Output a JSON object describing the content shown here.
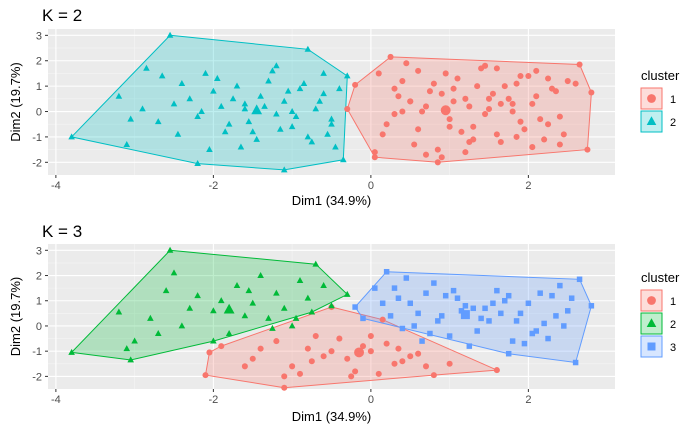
{
  "colors": {
    "panel_bg": "#ebebeb",
    "grid_major": "#ffffff",
    "k2": [
      "#f8766d",
      "#00bfc4"
    ],
    "k3": [
      "#f8766d",
      "#00ba38",
      "#619cff"
    ]
  },
  "chart_data": [
    {
      "type": "scatter",
      "title": "K = 2",
      "xlabel": "Dim1 (34.9%)",
      "ylabel": "Dim2 (19.7%)",
      "xlim": [
        -4.1,
        3.1
      ],
      "ylim": [
        -2.5,
        3.25
      ],
      "xticks": [
        -4,
        -2,
        0,
        2
      ],
      "yticks": [
        -2,
        -1,
        0,
        1,
        2,
        3
      ],
      "grid": true,
      "legend": {
        "title": "cluster",
        "placement": "right"
      },
      "series": [
        {
          "name": "1",
          "marker": "circle",
          "centroid": [
            0.95,
            0.05
          ],
          "hull": [
            [
              0.25,
              2.15
            ],
            [
              2.65,
              1.85
            ],
            [
              2.8,
              0.75
            ],
            [
              2.75,
              -1.5
            ],
            [
              0.85,
              -2.0
            ],
            [
              0.05,
              -1.8
            ],
            [
              -0.3,
              0.1
            ],
            [
              -0.2,
              1.05
            ]
          ],
          "x": [
            0.25,
            2.65,
            2.8,
            2.75,
            0.85,
            0.05,
            -0.3,
            -0.2,
            0.1,
            0.3,
            0.4,
            0.5,
            0.6,
            0.7,
            0.8,
            0.9,
            1.0,
            1.1,
            1.2,
            1.3,
            1.4,
            1.5,
            1.6,
            1.7,
            1.8,
            1.9,
            2.0,
            2.1,
            2.2,
            2.3,
            2.4,
            2.5,
            0.2,
            0.35,
            0.55,
            0.65,
            0.75,
            0.95,
            1.05,
            1.15,
            1.25,
            1.35,
            1.45,
            1.55,
            1.65,
            1.75,
            1.85,
            1.95,
            2.05,
            2.15,
            2.25,
            2.35,
            2.45,
            0.15,
            0.45,
            0.85,
            1.05,
            1.25,
            1.45,
            1.65,
            1.85,
            2.05,
            2.25,
            0.3,
            0.6,
            0.9,
            1.2,
            1.5,
            1.8,
            2.1,
            2.4,
            0.5,
            1.0,
            1.6,
            2.6,
            0.05,
            0.4,
            1.3,
            0.7,
            1.9
          ],
          "y": [
            2.15,
            1.85,
            0.75,
            -1.5,
            -2.0,
            -1.8,
            0.1,
            1.05,
            1.5,
            0.9,
            1.2,
            0.4,
            1.6,
            0.2,
            1.1,
            0.7,
            -0.3,
            1.3,
            0.5,
            -0.6,
            1.7,
            0.1,
            -0.9,
            1.0,
            0.3,
            -0.4,
            1.4,
            0.6,
            -1.1,
            0.9,
            -0.2,
            1.2,
            -0.5,
            0.6,
            -1.3,
            0.0,
            0.8,
            1.5,
            0.4,
            -0.8,
            0.2,
            1.0,
            -0.1,
            0.7,
            -1.2,
            0.5,
            1.1,
            -0.7,
            0.3,
            -0.3,
            1.3,
            0.8,
            -0.9,
            -0.9,
            1.9,
            -1.5,
            0.9,
            -1.2,
            1.8,
            0.3,
            -1.0,
            -1.4,
            -0.5,
            -0.1,
            -0.7,
            -1.8,
            -1.6,
            0.5,
            0.0,
            1.6,
            -1.3,
            0.4,
            -0.6,
            1.7,
            1.1,
            -1.6,
            0.0,
            -1.1,
            -1.7,
            1.4
          ]
        },
        {
          "name": "2",
          "marker": "triangle",
          "centroid": [
            -1.45,
            0.05
          ],
          "hull": [
            [
              -2.55,
              3.0
            ],
            [
              -0.8,
              2.45
            ],
            [
              -0.3,
              1.4
            ],
            [
              -0.35,
              -1.9
            ],
            [
              -1.1,
              -2.3
            ],
            [
              -2.2,
              -2.05
            ],
            [
              -3.8,
              -1.0
            ]
          ],
          "x": [
            -2.55,
            -0.8,
            -0.3,
            -0.35,
            -1.1,
            -2.2,
            -3.8,
            -3.2,
            -3.1,
            -2.9,
            -2.7,
            -2.4,
            -2.3,
            -2.2,
            -2.1,
            -2.0,
            -1.9,
            -1.8,
            -1.7,
            -1.6,
            -1.5,
            -1.4,
            -1.3,
            -1.2,
            -1.1,
            -1.0,
            -0.9,
            -0.8,
            -0.7,
            -0.6,
            -0.5,
            -0.45,
            -2.65,
            -2.45,
            -2.15,
            -1.95,
            -1.75,
            -1.55,
            -1.35,
            -1.25,
            -1.15,
            -1.05,
            -0.95,
            -0.85,
            -0.75,
            -0.65,
            -0.55,
            -0.4,
            -3.05,
            -2.85,
            -1.65,
            -1.45,
            -2.05,
            -1.85,
            -1.2,
            -0.6,
            -0.5,
            -1.6,
            -1.0,
            -2.5
          ],
          "y": [
            3.0,
            2.45,
            1.4,
            -1.9,
            -2.3,
            -2.05,
            -1.0,
            0.6,
            -1.3,
            0.1,
            -0.4,
            1.1,
            0.5,
            -0.2,
            1.5,
            0.8,
            0.2,
            -0.5,
            1.0,
            0.3,
            -0.8,
            0.6,
            1.2,
            -0.1,
            0.4,
            -0.6,
            0.9,
            -1.0,
            0.1,
            0.7,
            -0.3,
            -1.4,
            1.4,
            -0.9,
            0.0,
            1.3,
            0.5,
            -0.4,
            0.2,
            1.6,
            -0.7,
            0.8,
            -0.2,
            1.1,
            -1.2,
            0.4,
            -0.9,
            0.9,
            -0.3,
            1.7,
            -1.4,
            -1.1,
            -1.5,
            -0.8,
            1.8,
            1.5,
            -0.5,
            0.1,
            0.0,
            0.3
          ]
        }
      ]
    },
    {
      "type": "scatter",
      "title": "K = 3",
      "xlabel": "Dim1 (34.9%)",
      "ylabel": "Dim2 (19.7%)",
      "xlim": [
        -4.1,
        3.1
      ],
      "ylim": [
        -2.5,
        3.25
      ],
      "xticks": [
        -4,
        -2,
        0,
        2
      ],
      "yticks": [
        -2,
        -1,
        0,
        1,
        2,
        3
      ],
      "grid": true,
      "legend": {
        "title": "cluster",
        "placement": "right"
      },
      "series": [
        {
          "name": "1",
          "marker": "circle",
          "centroid": [
            -0.15,
            -1.05
          ],
          "hull": [
            [
              -0.5,
              0.75
            ],
            [
              0.15,
              0.25
            ],
            [
              1.6,
              -1.75
            ],
            [
              0.8,
              -1.95
            ],
            [
              -1.1,
              -2.45
            ],
            [
              -2.1,
              -1.95
            ],
            [
              -2.05,
              -1.05
            ],
            [
              -1.9,
              -0.8
            ]
          ],
          "x": [
            -0.5,
            0.15,
            1.6,
            0.8,
            -1.1,
            -2.1,
            -2.05,
            -1.9,
            -1.5,
            -1.2,
            -1.0,
            -0.8,
            -0.6,
            -0.4,
            -0.2,
            0.0,
            0.2,
            0.4,
            0.6,
            0.7,
            -1.4,
            -0.9,
            -0.7,
            -0.3,
            -0.1,
            0.1,
            0.3,
            0.5,
            -1.1,
            -0.5,
            0.0,
            -0.75,
            -0.25,
            0.35,
            1.0,
            -1.6
          ],
          "y": [
            0.75,
            0.25,
            -1.75,
            -1.95,
            -2.45,
            -1.95,
            -1.05,
            -0.8,
            -1.3,
            -0.6,
            -1.6,
            -0.9,
            -1.2,
            -0.5,
            -1.8,
            -1.0,
            -0.7,
            -1.4,
            -1.1,
            -1.6,
            -0.9,
            -1.9,
            -0.4,
            -1.3,
            -0.8,
            -1.9,
            -1.5,
            -1.2,
            -2.0,
            -1.0,
            -0.4,
            -1.4,
            -2.0,
            -0.9,
            -1.5,
            -1.6
          ]
        },
        {
          "name": "2",
          "marker": "triangle",
          "centroid": [
            -1.8,
            0.65
          ],
          "hull": [
            [
              -2.55,
              3.0
            ],
            [
              -0.7,
              2.45
            ],
            [
              -0.3,
              1.25
            ],
            [
              -0.75,
              0.55
            ],
            [
              -2.0,
              -0.6
            ],
            [
              -3.05,
              -1.35
            ],
            [
              -3.8,
              -1.05
            ]
          ],
          "x": [
            -2.55,
            -0.7,
            -0.3,
            -0.75,
            -2.0,
            -3.05,
            -3.8,
            -3.2,
            -3.0,
            -2.8,
            -2.6,
            -2.4,
            -2.2,
            -2.0,
            -1.9,
            -1.7,
            -1.6,
            -1.5,
            -1.4,
            -1.3,
            -1.2,
            -1.1,
            -1.0,
            -0.9,
            -0.8,
            -0.6,
            -0.5,
            -2.7,
            -2.3,
            -1.8,
            -1.25,
            -3.1,
            -2.5,
            -1.55,
            -0.95
          ],
          "y": [
            3.0,
            2.45,
            1.25,
            0.55,
            -0.6,
            -1.35,
            -1.05,
            0.55,
            -0.6,
            0.3,
            1.4,
            0.0,
            1.2,
            0.6,
            1.0,
            1.6,
            0.4,
            0.9,
            2.0,
            0.3,
            1.3,
            0.7,
            0.0,
            1.8,
            1.1,
            1.6,
            0.8,
            -0.3,
            0.7,
            -0.3,
            -0.1,
            -0.9,
            2.1,
            1.4,
            0.3
          ]
        },
        {
          "name": "3",
          "marker": "square",
          "centroid": [
            1.2,
            0.45
          ],
          "hull": [
            [
              0.2,
              2.15
            ],
            [
              2.65,
              1.85
            ],
            [
              2.8,
              0.8
            ],
            [
              2.6,
              -1.45
            ],
            [
              1.75,
              -1.1
            ],
            [
              -0.1,
              0.3
            ],
            [
              -0.2,
              0.75
            ]
          ],
          "x": [
            0.2,
            2.65,
            2.8,
            2.6,
            1.75,
            -0.1,
            -0.2,
            0.3,
            0.5,
            0.7,
            0.9,
            1.1,
            1.3,
            1.5,
            1.7,
            1.9,
            2.1,
            2.3,
            2.5,
            0.4,
            0.6,
            0.8,
            1.0,
            1.2,
            1.4,
            1.6,
            1.8,
            2.0,
            2.2,
            2.4,
            0.35,
            0.55,
            0.75,
            0.95,
            1.15,
            1.35,
            1.55,
            1.95,
            2.15,
            2.35,
            0.25,
            0.65,
            1.05,
            1.45,
            1.85,
            2.25,
            2.55,
            0.45,
            0.85,
            1.25,
            1.65,
            2.05,
            0.15,
            1.75,
            2.45,
            0.05
          ],
          "y": [
            2.15,
            1.85,
            0.8,
            -1.45,
            -1.1,
            0.3,
            0.75,
            1.5,
            0.9,
            1.3,
            0.4,
            1.1,
            0.7,
            0.2,
            1.0,
            0.5,
            -0.2,
            1.2,
            0.6,
            -0.1,
            0.5,
            1.7,
            -0.4,
            0.8,
            0.3,
            1.4,
            -0.6,
            0.9,
            0.1,
            1.6,
            1.1,
            0.0,
            -0.3,
            1.2,
            0.6,
            -0.2,
            0.9,
            -0.7,
            1.3,
            0.4,
            0.4,
            -0.6,
            1.4,
            0.7,
            0.2,
            -0.5,
            1.1,
            1.9,
            0.2,
            -0.8,
            0.5,
            -0.3,
            0.9,
            1.2,
            0.0,
            1.5
          ]
        }
      ]
    }
  ]
}
